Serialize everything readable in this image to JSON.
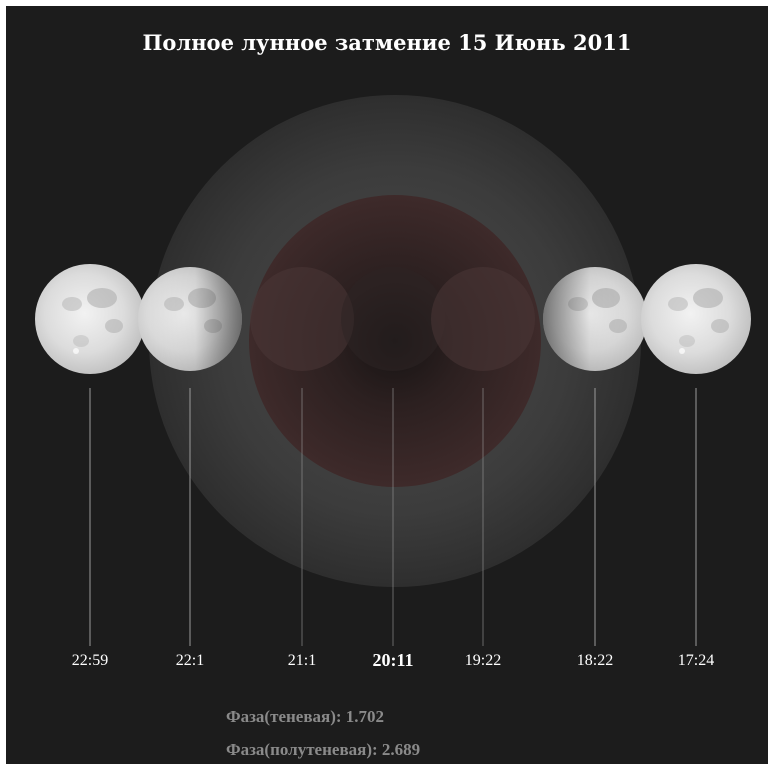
{
  "title": "Полное лунное затмение 15 Июнь 2011",
  "colors": {
    "background": "#1c1c1c",
    "penumbra": "#3b3b3b",
    "umbra": "#3a2626",
    "moon": "#d6d6d6",
    "text": "#ffffff",
    "stats": "#8a8a8a"
  },
  "moons": [
    {
      "time": "22:59",
      "phase": "full"
    },
    {
      "time": "22:1",
      "phase": "partial"
    },
    {
      "time": "21:1",
      "phase": "total"
    },
    {
      "time": "20:11",
      "phase": "maximum"
    },
    {
      "time": "19:22",
      "phase": "total"
    },
    {
      "time": "18:22",
      "phase": "partial"
    },
    {
      "time": "17:24",
      "phase": "full"
    }
  ],
  "stats": {
    "umbral": "Фаза(теневая): 1.702",
    "penumbral": "Фаза(полутеневая): 2.689"
  }
}
